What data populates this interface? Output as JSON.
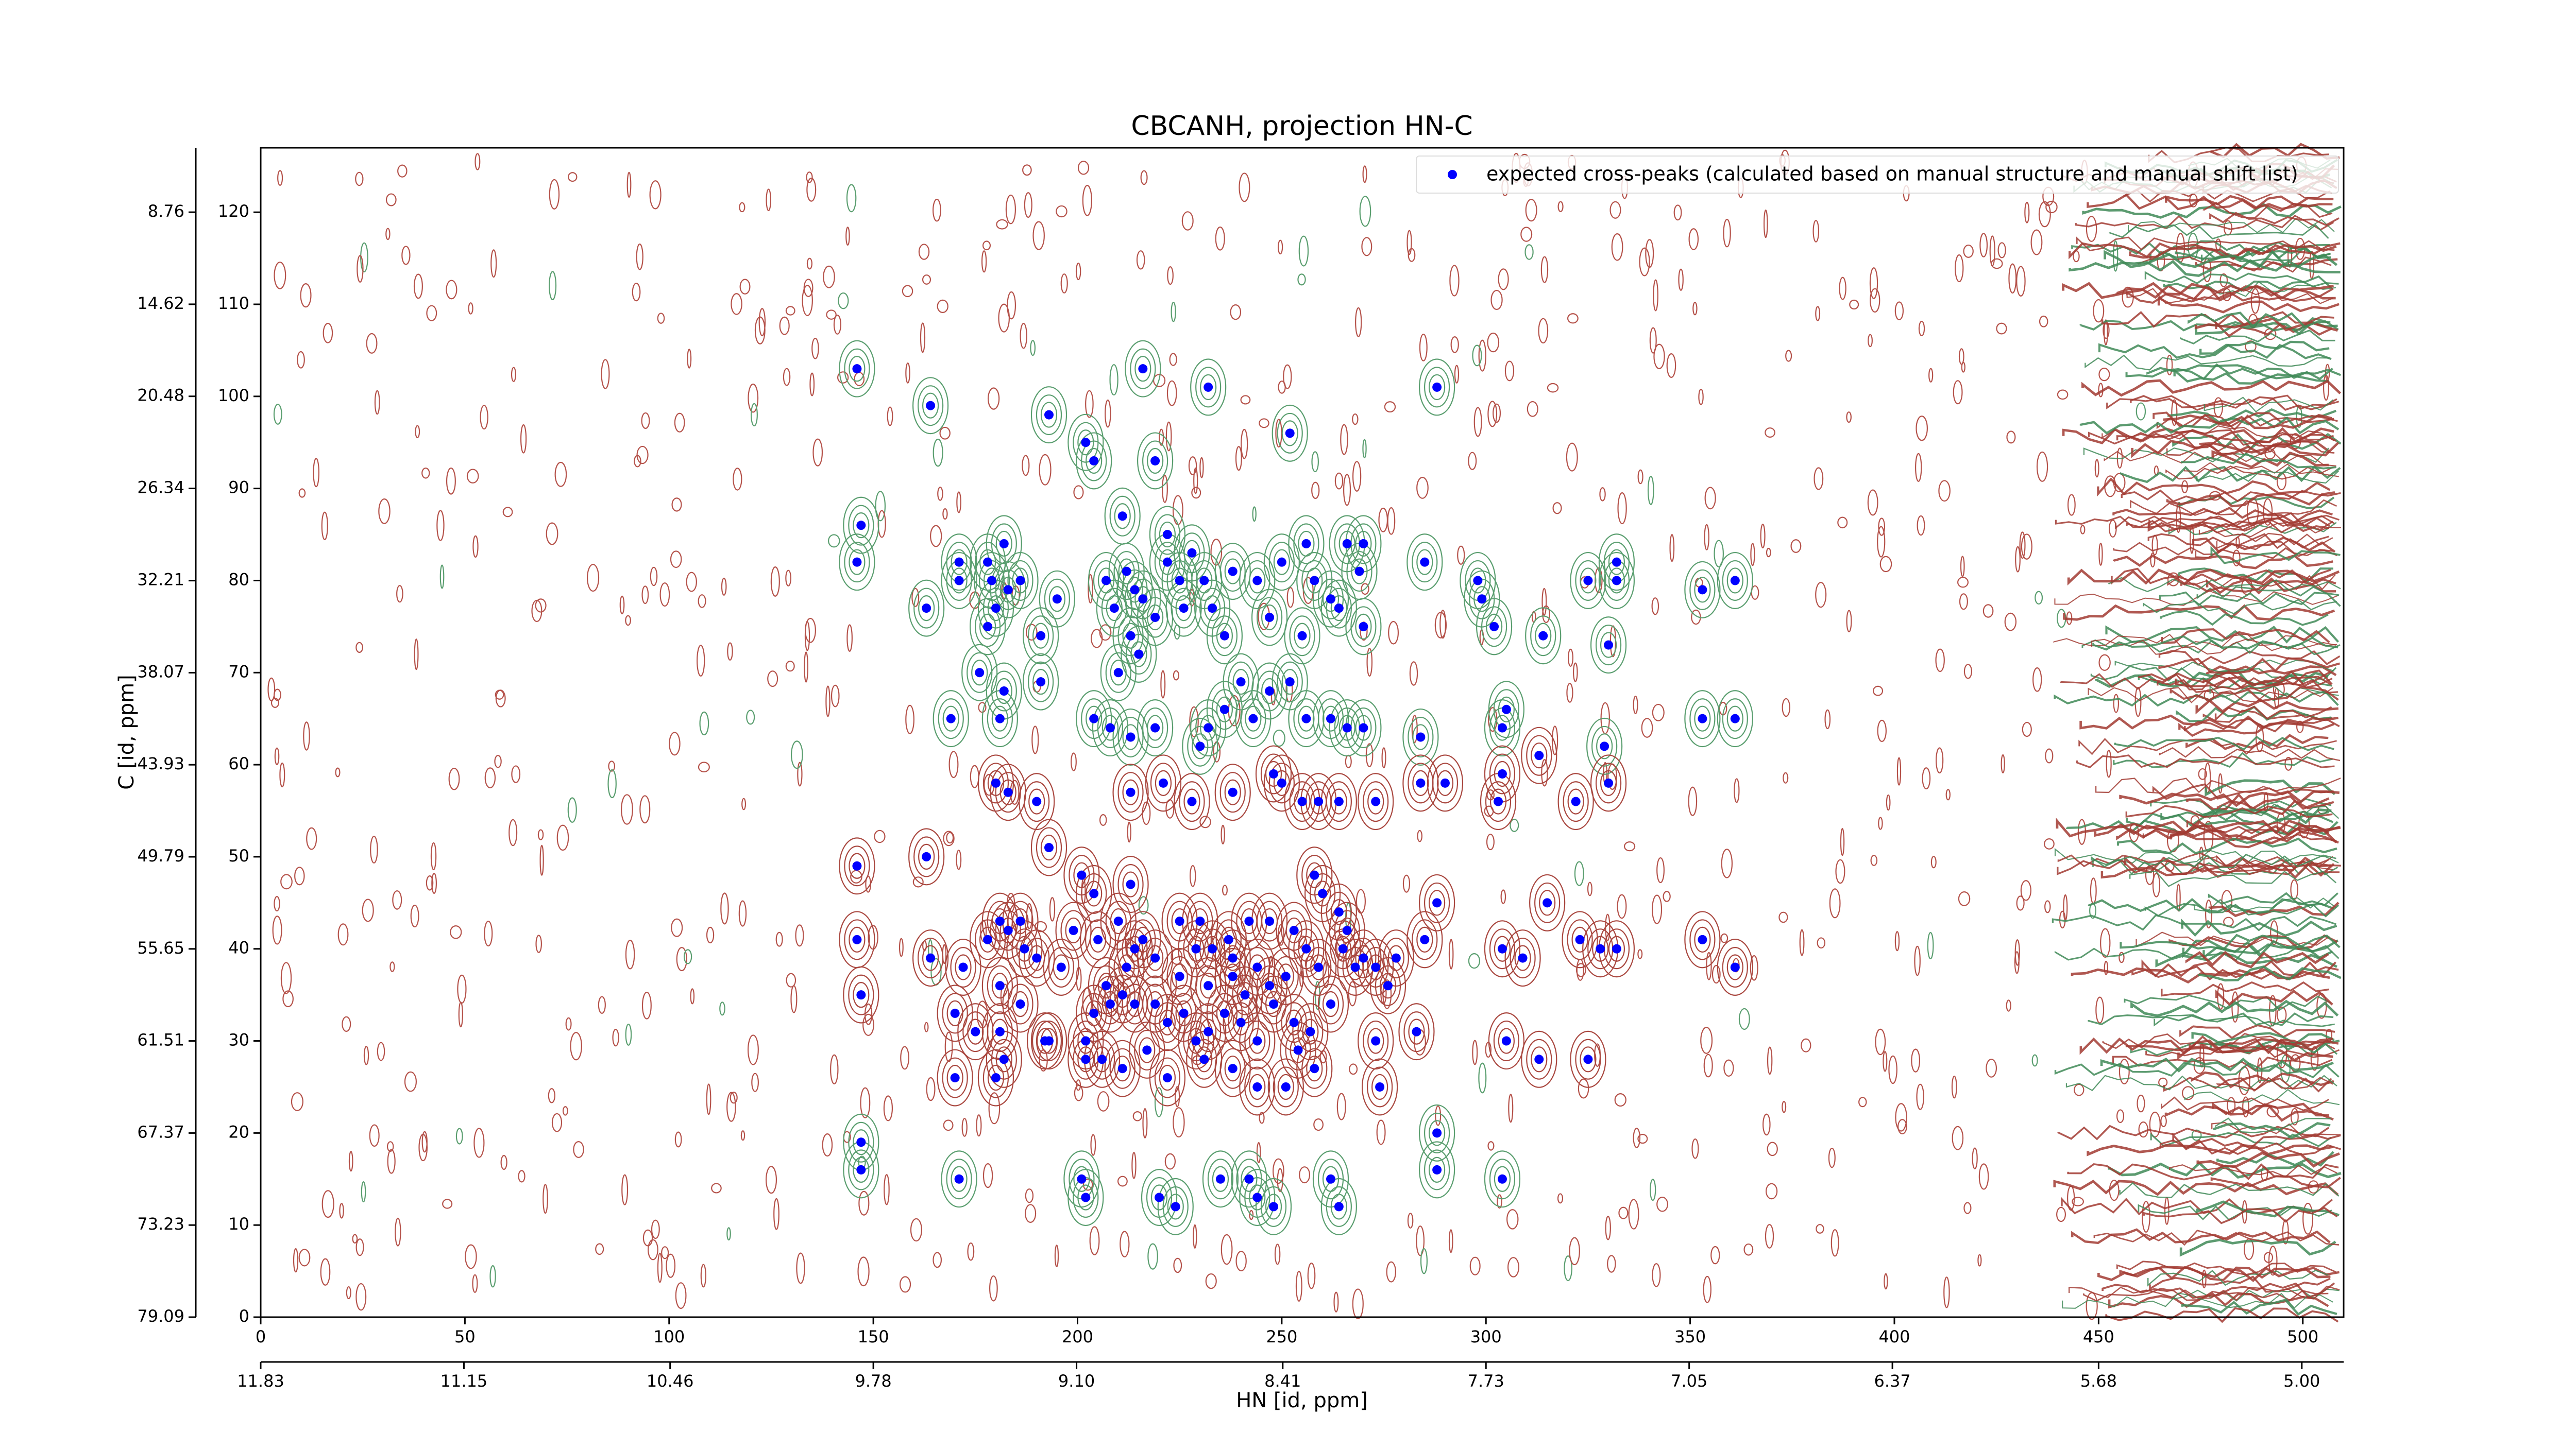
{
  "chart_data": {
    "type": "scatter",
    "title": "CBCANH, projection HN-C",
    "xlabel": "HN [id, ppm]",
    "ylabel": "C [id, ppm]",
    "xlim": [
      0,
      510
    ],
    "xticks": [
      0,
      50,
      100,
      150,
      200,
      250,
      300,
      350,
      400,
      450,
      500
    ],
    "ylim": [
      0,
      127
    ],
    "yticks": [
      0,
      10,
      20,
      30,
      40,
      50,
      60,
      70,
      80,
      90,
      100,
      110,
      120
    ],
    "x2lim": [
      11.83,
      4.86
    ],
    "x2ticks": [
      11.83,
      11.15,
      10.46,
      9.78,
      {
        "value": 9.1,
        "label": "9.10"
      },
      8.41,
      7.73,
      7.05,
      6.37,
      5.68,
      {
        "value": 5,
        "label": "5.00"
      }
    ],
    "y2lim": [
      79.09,
      4.66
    ],
    "y2ticks": [
      79.09,
      73.23,
      67.37,
      61.51,
      55.65,
      49.79,
      43.93,
      38.07,
      32.21,
      26.34,
      20.48,
      14.62,
      8.76
    ],
    "legend": "upper right",
    "series": [
      {
        "name": "expected cross-peaks (calculated based on manual structure and manual shift list)",
        "color": "#0000ff",
        "x": [
          146,
          164,
          193,
          202,
          204,
          216,
          219,
          232,
          252,
          288,
          147,
          146,
          163,
          171,
          171,
          178,
          179,
          182,
          183,
          186,
          178,
          180,
          191,
          195,
          176,
          182,
          191,
          211,
          207,
          212,
          214,
          209,
          216,
          219,
          213,
          215,
          210,
          222,
          222,
          228,
          225,
          231,
          226,
          233,
          238,
          236,
          244,
          247,
          250,
          256,
          258,
          262,
          255,
          266,
          270,
          264,
          269,
          270,
          285,
          298,
          299,
          302,
          314,
          325,
          332,
          332,
          330,
          353,
          361,
          169,
          181,
          204,
          208,
          213,
          219,
          230,
          232,
          236,
          240,
          243,
          247,
          252,
          256,
          262,
          266,
          270,
          284,
          304,
          305,
          313,
          329,
          353,
          361,
          180,
          183,
          190,
          213,
          221,
          228,
          238,
          248,
          250,
          255,
          259,
          264,
          273,
          284,
          290,
          304,
          303,
          322,
          330,
          146,
          163,
          193,
          201,
          204,
          213,
          216,
          225,
          230,
          233,
          237,
          238,
          242,
          247,
          253,
          258,
          260,
          264,
          266,
          270,
          278,
          285,
          288,
          304,
          309,
          315,
          323,
          328,
          332,
          353,
          361,
          146,
          147,
          164,
          172,
          178,
          181,
          183,
          186,
          187,
          190,
          196,
          199,
          205,
          210,
          212,
          214,
          219,
          225,
          229,
          232,
          238,
          241,
          244,
          247,
          251,
          256,
          259,
          262,
          265,
          268,
          273,
          276,
          170,
          175,
          181,
          181,
          186,
          193,
          202,
          204,
          207,
          208,
          211,
          214,
          219,
          222,
          226,
          229,
          232,
          236,
          240,
          244,
          248,
          253,
          257,
          254,
          273,
          283,
          305,
          313,
          325,
          170,
          180,
          182,
          192,
          202,
          206,
          211,
          217,
          222,
          231,
          238,
          244,
          251,
          258,
          274,
          147,
          147,
          171,
          201,
          202,
          220,
          224,
          235,
          242,
          244,
          248,
          262,
          264,
          288,
          288,
          304
        ],
        "values": [
          103,
          99,
          98,
          95,
          93,
          103,
          93,
          101,
          96,
          101,
          86,
          82,
          77,
          82,
          80,
          82,
          80,
          84,
          79,
          80,
          75,
          77,
          74,
          78,
          70,
          68,
          69,
          87,
          80,
          81,
          79,
          77,
          78,
          76,
          74,
          72,
          70,
          85,
          82,
          83,
          80,
          80,
          77,
          77,
          81,
          74,
          80,
          76,
          82,
          84,
          80,
          78,
          74,
          84,
          84,
          77,
          81,
          75,
          82,
          80,
          78,
          75,
          74,
          80,
          82,
          80,
          73,
          79,
          80,
          65,
          65,
          65,
          64,
          63,
          64,
          62,
          64,
          66,
          69,
          65,
          68,
          69,
          65,
          65,
          64,
          64,
          63,
          64,
          66,
          61,
          62,
          65,
          65,
          58,
          57,
          56,
          57,
          58,
          56,
          57,
          59,
          58,
          56,
          56,
          56,
          56,
          58,
          58,
          59,
          56,
          56,
          58,
          49,
          50,
          51,
          48,
          46,
          47,
          41,
          43,
          43,
          40,
          41,
          39,
          43,
          43,
          42,
          48,
          46,
          44,
          42,
          39,
          39,
          41,
          45,
          40,
          39,
          45,
          41,
          40,
          40,
          41,
          38,
          41,
          35,
          39,
          38,
          41,
          43,
          42,
          43,
          40,
          39,
          38,
          42,
          41,
          43,
          38,
          40,
          39,
          37,
          40,
          36,
          37,
          35,
          38,
          36,
          37,
          40,
          38,
          34,
          40,
          38,
          38,
          36,
          33,
          31,
          36,
          31,
          34,
          30,
          30,
          33,
          36,
          34,
          35,
          34,
          34,
          32,
          33,
          30,
          31,
          33,
          32,
          30,
          34,
          32,
          31,
          29,
          30,
          31,
          30,
          28,
          28,
          26,
          26,
          28,
          30,
          28,
          28,
          27,
          29,
          26,
          28,
          27,
          25,
          25,
          27,
          25,
          19,
          16,
          15,
          15,
          13,
          13,
          12,
          15,
          15,
          13,
          12,
          15,
          12,
          20,
          16,
          15
        ]
      }
    ]
  }
}
